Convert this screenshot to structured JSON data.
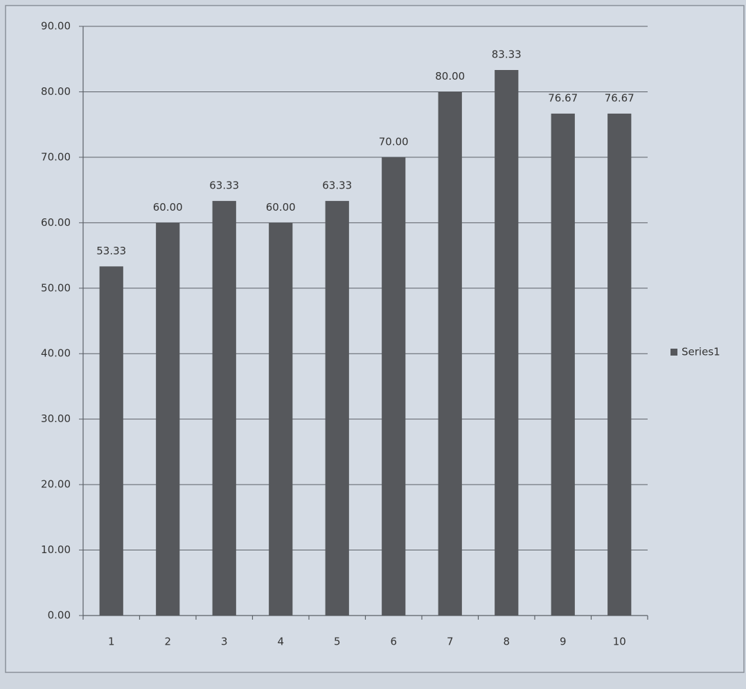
{
  "chart_data": {
    "type": "bar",
    "categories": [
      "1",
      "2",
      "3",
      "4",
      "5",
      "6",
      "7",
      "8",
      "9",
      "10"
    ],
    "series": [
      {
        "name": "Series1",
        "color": "#56585c",
        "values": [
          53.33,
          60,
          63.33,
          60,
          63.33,
          70,
          80,
          83.33,
          76.67,
          76.67
        ],
        "value_labels": [
          "53.33",
          "60.00",
          "63.33",
          "60.00",
          "63.33",
          "70.00",
          "80.00",
          "83.33",
          "76.67",
          "76.67"
        ]
      }
    ],
    "ylim": [
      0,
      90
    ],
    "yticks": [
      {
        "value": 0,
        "label": "0.00"
      },
      {
        "value": 10,
        "label": "10.00"
      },
      {
        "value": 20,
        "label": "20.00"
      },
      {
        "value": 30,
        "label": "30.00"
      },
      {
        "value": 40,
        "label": "40.00"
      },
      {
        "value": 50,
        "label": "50.00"
      },
      {
        "value": 60,
        "label": "60.00"
      },
      {
        "value": 70,
        "label": "70.00"
      },
      {
        "value": 80,
        "label": "80.00"
      },
      {
        "value": 90,
        "label": "90.00"
      }
    ],
    "grid": true,
    "legend": "right"
  }
}
